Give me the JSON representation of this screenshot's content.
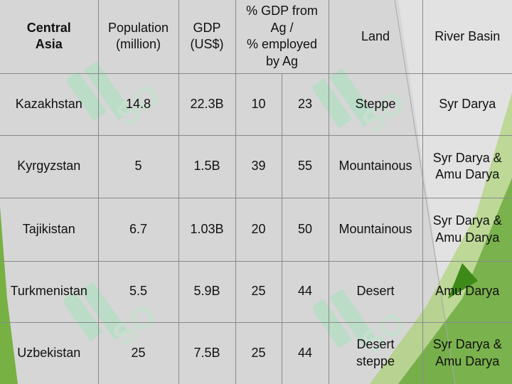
{
  "colors": {
    "background": "#d6d6d6",
    "header_green": "#3f8f2a",
    "header_bright_green": "#6fce1a",
    "country_purple": "#6a2a73",
    "accent_green": "#5fa81e"
  },
  "table": {
    "corner": "Central\nAsia",
    "headers": {
      "population": "Population\n(million)",
      "gdp": "GDP\n(US$)",
      "ag": "% GDP from\nAg /\n% employed\nby Ag",
      "land": "Land",
      "river_basin": "River Basin"
    },
    "rows": [
      {
        "country": "Kazakhstan",
        "population": "14.8",
        "gdp": "22.3B",
        "gdp_ag": "10",
        "employed_ag": "23",
        "land": "Steppe",
        "river": "Syr Darya"
      },
      {
        "country": "Kyrgyzstan",
        "population": "5",
        "gdp": "1.5B",
        "gdp_ag": "39",
        "employed_ag": "55",
        "land": "Mountainous",
        "river": "Syr Darya &\nAmu Darya"
      },
      {
        "country": "Tajikistan",
        "population": "6.7",
        "gdp": "1.03B",
        "gdp_ag": "20",
        "employed_ag": "50",
        "land": "Mountainous",
        "river": "Syr Darya &\nAmu Darya"
      },
      {
        "country": "Turkmenistan",
        "population": "5.5",
        "gdp": "5.9B",
        "gdp_ag": "25",
        "employed_ag": "44",
        "land": "Desert",
        "river": "Amu Darya"
      },
      {
        "country": "Uzbekistan",
        "population": "25",
        "gdp": "7.5B",
        "gdp_ag": "25",
        "employed_ag": "44",
        "land": "Desert\nsteppe",
        "river": "Syr Darya &\nAmu Darya"
      }
    ]
  },
  "watermark": {
    "text": "SOFT",
    "icon": "watermark-logo-icon"
  }
}
